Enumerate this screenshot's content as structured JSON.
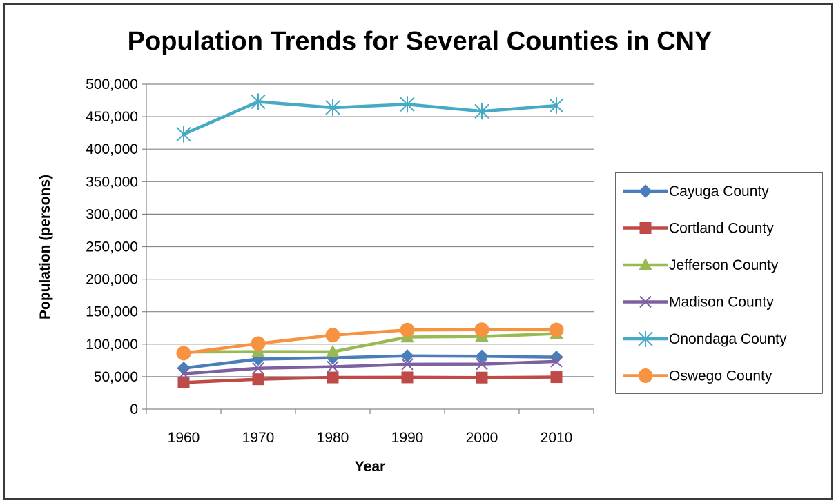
{
  "chart_data": {
    "type": "line",
    "title": "Population Trends for Several Counties in CNY",
    "xlabel": "Year",
    "ylabel": "Population (persons)",
    "categories": [
      "1960",
      "1970",
      "1980",
      "1990",
      "2000",
      "2010"
    ],
    "ylim": [
      0,
      500000
    ],
    "ytick_step": 50000,
    "y_tick_labels": [
      "0",
      "50,000",
      "100,000",
      "150,000",
      "200,000",
      "250,000",
      "300,000",
      "350,000",
      "400,000",
      "450,000",
      "500,000"
    ],
    "grid": "horizontal",
    "legend_position": "right",
    "series": [
      {
        "name": "Cayuga County",
        "values": [
          63000,
          77000,
          79000,
          82000,
          81500,
          80000
        ],
        "color": "#4a7ebb",
        "marker": "diamond"
      },
      {
        "name": "Cortland County",
        "values": [
          41000,
          46000,
          48800,
          48900,
          48600,
          49300
        ],
        "color": "#be4b48",
        "marker": "square"
      },
      {
        "name": "Jefferson County",
        "values": [
          88000,
          88500,
          88200,
          110900,
          111800,
          116200
        ],
        "color": "#98b954",
        "marker": "triangle"
      },
      {
        "name": "Madison County",
        "values": [
          54600,
          62900,
          65200,
          69100,
          69400,
          73400
        ],
        "color": "#7d60a0",
        "marker": "x"
      },
      {
        "name": "Onondaga County",
        "values": [
          423000,
          473000,
          463900,
          468900,
          458300,
          467000
        ],
        "color": "#46aac5",
        "marker": "star"
      },
      {
        "name": "Oswego County",
        "values": [
          86000,
          100900,
          113900,
          121800,
          122400,
          122100
        ],
        "color": "#f69240",
        "marker": "circle"
      }
    ]
  }
}
